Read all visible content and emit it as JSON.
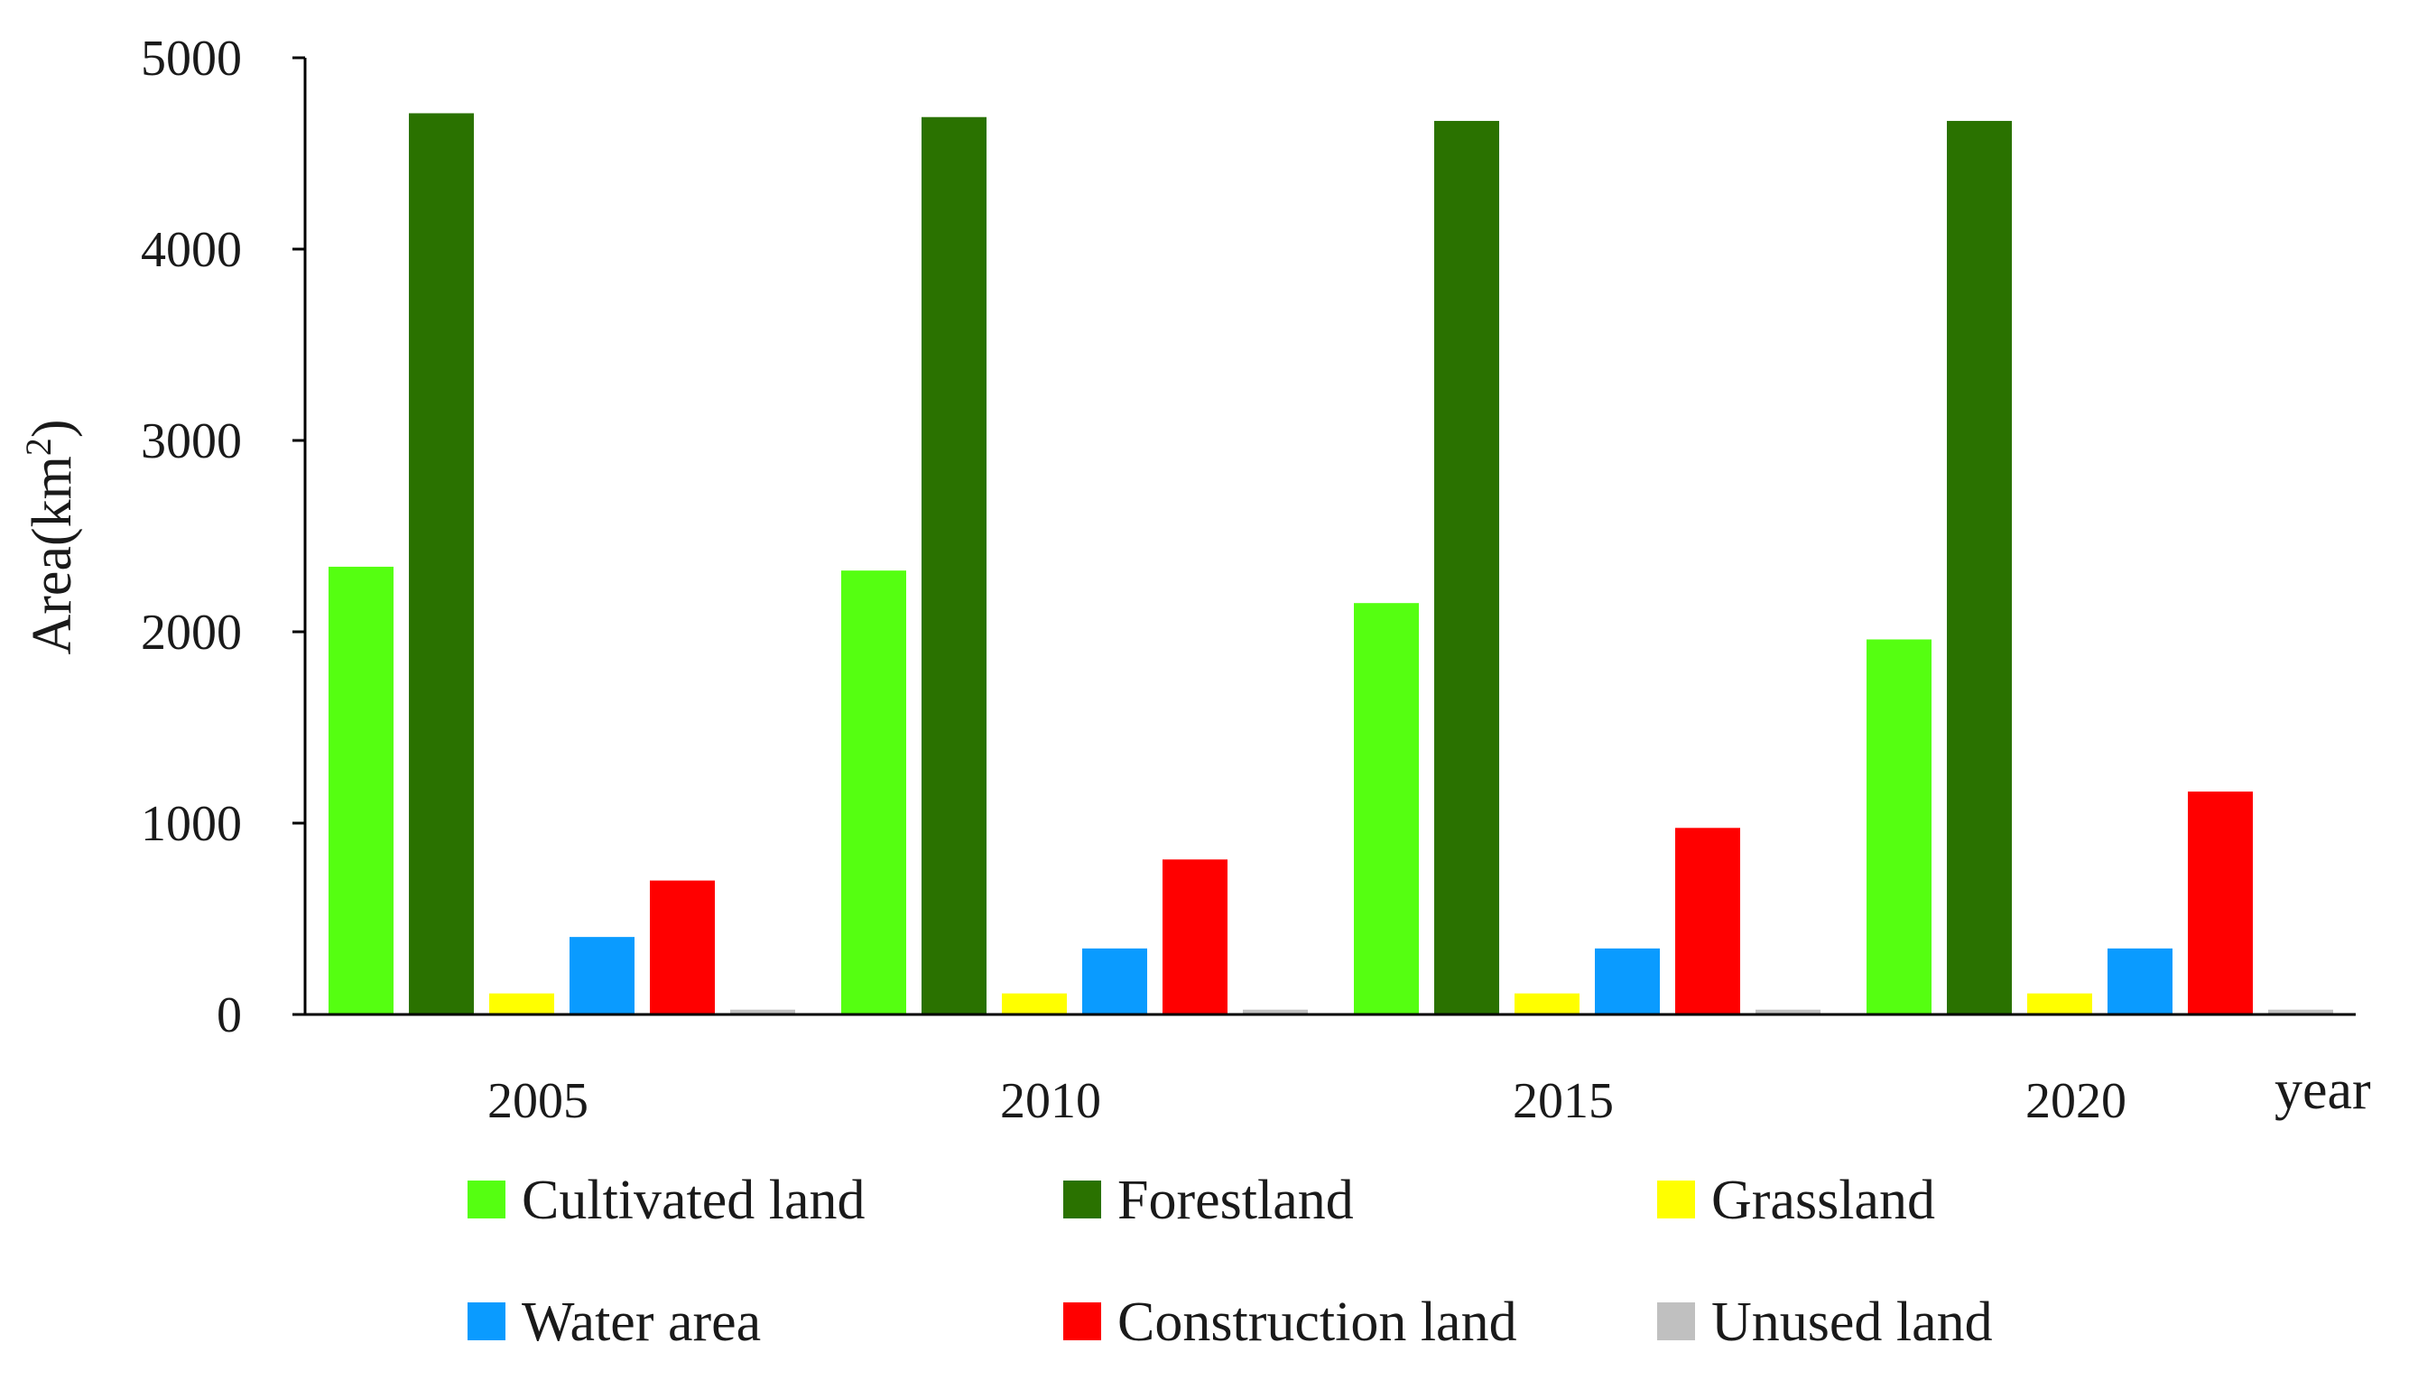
{
  "chart_data": {
    "type": "bar",
    "title": "",
    "xlabel": "year",
    "ylabel": "Area(km²)",
    "ylabel_base": "Area(km",
    "ylabel_sup": "2",
    "ylabel_close": ")",
    "ylim": [
      0,
      5000
    ],
    "yticks": [
      0,
      1000,
      2000,
      3000,
      4000,
      5000
    ],
    "categories": [
      "2005",
      "2010",
      "2015",
      "2020"
    ],
    "legend_position": "bottom",
    "series": [
      {
        "name": "Cultivated land",
        "color": "#55ff11",
        "values": [
          2340,
          2320,
          2150,
          1960
        ]
      },
      {
        "name": "Forestland",
        "color": "#2a7200",
        "values": [
          4710,
          4690,
          4670,
          4670
        ]
      },
      {
        "name": "Grassland",
        "color": "#ffff00",
        "values": [
          110,
          110,
          110,
          110
        ]
      },
      {
        "name": "Water area",
        "color": "#0a9bff",
        "values": [
          405,
          345,
          345,
          345
        ]
      },
      {
        "name": "Construction land",
        "color": "#ff0000",
        "values": [
          700,
          810,
          975,
          1165
        ]
      },
      {
        "name": "Unused land",
        "color": "#c0c0c0",
        "values": [
          25,
          25,
          25,
          25
        ]
      }
    ]
  }
}
